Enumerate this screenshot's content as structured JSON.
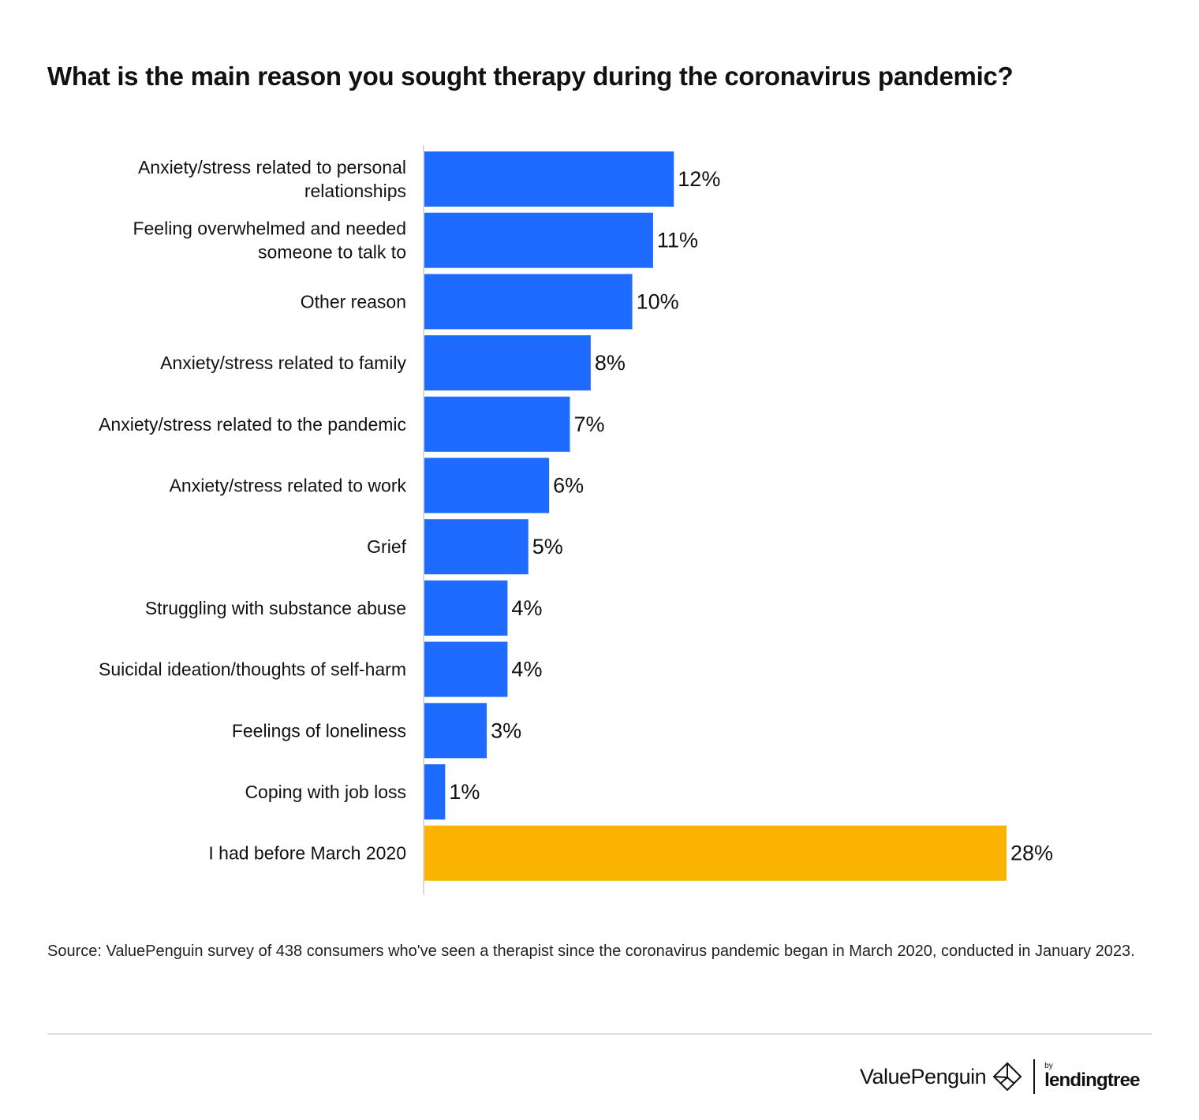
{
  "title": "What is the main reason you sought therapy during the coronavirus pandemic?",
  "chart_data": {
    "type": "bar",
    "orientation": "horizontal",
    "categories": [
      [
        "Anxiety/stress related to personal",
        "relationships"
      ],
      [
        "Feeling overwhelmed and needed",
        "someone to talk to"
      ],
      [
        "Other reason"
      ],
      [
        "Anxiety/stress related to family"
      ],
      [
        "Anxiety/stress related to the pandemic"
      ],
      [
        "Anxiety/stress related to work"
      ],
      [
        "Grief"
      ],
      [
        "Struggling with substance abuse"
      ],
      [
        "Suicidal ideation/thoughts of self-harm"
      ],
      [
        "Feelings of loneliness"
      ],
      [
        "Coping with job loss"
      ],
      [
        "I had before March 2020"
      ]
    ],
    "values": [
      12,
      11,
      10,
      8,
      7,
      6,
      5,
      4,
      4,
      3,
      1,
      28
    ],
    "value_labels": [
      "12%",
      "11%",
      "10%",
      "8%",
      "7%",
      "6%",
      "5%",
      "4%",
      "4%",
      "3%",
      "1%",
      "28%"
    ],
    "colors": [
      "#1f6bff",
      "#1f6bff",
      "#1f6bff",
      "#1f6bff",
      "#1f6bff",
      "#1f6bff",
      "#1f6bff",
      "#1f6bff",
      "#1f6bff",
      "#1f6bff",
      "#1f6bff",
      "#f9b300"
    ],
    "xlim": [
      0,
      28
    ],
    "grid": false,
    "legend": "none"
  },
  "source": "Source: ValuePenguin survey of 438 consumers who've seen a therapist since the coronavirus pandemic began in March 2020, conducted in January 2023.",
  "branding": {
    "valuepenguin": "ValuePenguin",
    "by": "by",
    "lendingtree": "lendingtree"
  }
}
